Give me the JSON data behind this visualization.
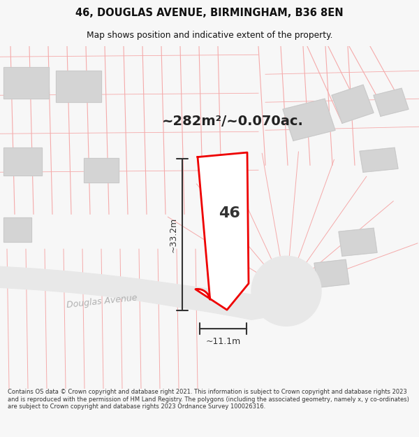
{
  "title_line1": "46, DOUGLAS AVENUE, BIRMINGHAM, B36 8EN",
  "title_line2": "Map shows position and indicative extent of the property.",
  "area_text": "~282m²/~0.070ac.",
  "property_number": "46",
  "dim_width": "~11.1m",
  "dim_height": "~33.2m",
  "road_label": "Douglas Avenue",
  "footer_text": "Contains OS data © Crown copyright and database right 2021. This information is subject to Crown copyright and database rights 2023 and is reproduced with the permission of HM Land Registry. The polygons (including the associated geometry, namely x, y co-ordinates) are subject to Crown copyright and database rights 2023 Ordnance Survey 100026316.",
  "bg_color": "#f7f7f7",
  "map_bg": "#ffffff",
  "plot_color": "#ee0000",
  "grid_line_color": "#f5aaaa",
  "building_fill": "#d4d4d4",
  "building_stroke": "#c8c8c8",
  "road_fill": "#e8e8e8",
  "road_stroke": "#d0d0d0",
  "road_label_color": "#b0b0b0",
  "dim_color": "#333333",
  "text_color": "#222222"
}
